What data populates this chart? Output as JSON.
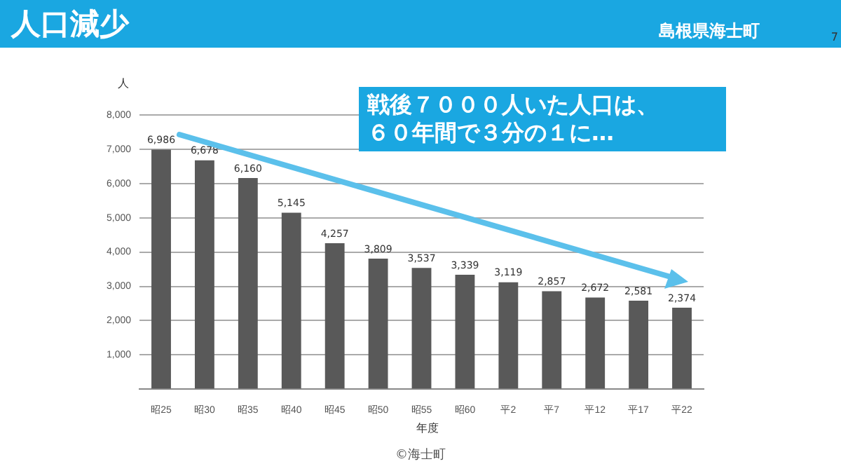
{
  "chart_data": {
    "type": "bar",
    "title": "人口減少",
    "subtitle": "島根県海士町",
    "ylabel": "人",
    "xlabel": "年度",
    "categories": [
      "昭25",
      "昭30",
      "昭35",
      "昭40",
      "昭45",
      "昭50",
      "昭55",
      "昭60",
      "平2",
      "平7",
      "平12",
      "平17",
      "平22"
    ],
    "values": [
      6986,
      6678,
      6160,
      5145,
      4257,
      3809,
      3537,
      3339,
      3119,
      2857,
      2672,
      2581,
      2374
    ],
    "value_labels": [
      "6,986",
      "6,678",
      "6,160",
      "5,145",
      "4,257",
      "3,809",
      "3,537",
      "3,339",
      "3,119",
      "2,857",
      "2,672",
      "2,581",
      "2,374"
    ],
    "color": "#595959",
    "grid": "y",
    "legend": false,
    "ylim": [
      0,
      8000
    ],
    "yticks": [
      {
        "value": 0,
        "label": null
      },
      {
        "value": 1000,
        "label": "1,000"
      },
      {
        "value": 2000,
        "label": "2,000"
      },
      {
        "value": 3000,
        "label": "3,000"
      },
      {
        "value": 4000,
        "label": "4,000"
      },
      {
        "value": 5000,
        "label": "5,000"
      },
      {
        "value": 6000,
        "label": "6,000"
      },
      {
        "value": 7000,
        "label": "7,000"
      },
      {
        "value": 8000,
        "label": "8,000"
      }
    ],
    "annotations": [
      "戦後７０００人いた人口は、６０年間で３分の１に…",
      "©海士町",
      "7"
    ]
  }
}
